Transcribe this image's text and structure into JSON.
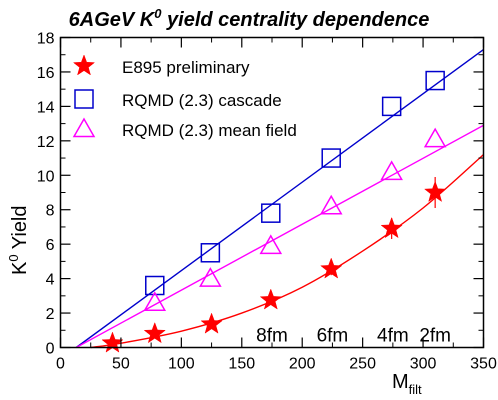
{
  "chart_data": {
    "type": "scatter",
    "title_main": "6AGeV K",
    "title_sup": "0",
    "title_rest": " yield centrality dependence",
    "xlabel_main": "M",
    "xlabel_sub": "filt",
    "ylabel_main": "K",
    "ylabel_sup": "0",
    "ylabel_rest": " Yield",
    "xlim": [
      0,
      350
    ],
    "ylim": [
      0,
      18
    ],
    "xticks": [
      0,
      50,
      100,
      150,
      200,
      250,
      300,
      350
    ],
    "yticks": [
      0,
      2,
      4,
      6,
      8,
      10,
      12,
      14,
      16,
      18
    ],
    "grid": false,
    "legend_position": "top-left",
    "series": [
      {
        "name": "E895 preliminary",
        "color": "#ff0000",
        "marker": "star",
        "x": [
          43,
          78,
          125,
          174,
          224,
          274,
          310
        ],
        "y": [
          0.25,
          0.8,
          1.35,
          2.75,
          4.55,
          6.9,
          9.0
        ],
        "yerr": [
          0.1,
          0.15,
          0.2,
          0.25,
          0.35,
          0.6,
          0.9
        ],
        "fit": {
          "type": "curve",
          "x": [
            25,
            50,
            100,
            150,
            200,
            250,
            300,
            350
          ],
          "y": [
            0.0,
            0.25,
            0.95,
            2.0,
            3.5,
            5.6,
            8.1,
            11.2
          ]
        }
      },
      {
        "name": "RQMD (2.3) cascade",
        "color": "#0000cc",
        "marker": "square",
        "x": [
          78,
          124,
          174,
          224,
          274,
          310
        ],
        "y": [
          3.6,
          5.5,
          7.8,
          11.0,
          14.0,
          15.5
        ],
        "fit": {
          "type": "line",
          "x": [
            13,
            350
          ],
          "y": [
            0.0,
            17.3
          ]
        }
      },
      {
        "name": "RQMD (2.3) mean field",
        "color": "#ff00ff",
        "marker": "triangle",
        "x": [
          78,
          124,
          174,
          224,
          274,
          310
        ],
        "y": [
          2.6,
          4.0,
          5.9,
          8.2,
          10.2,
          12.1
        ],
        "fit": {
          "type": "line",
          "x": [
            13,
            350
          ],
          "y": [
            0.0,
            12.9
          ]
        }
      }
    ],
    "annotations": [
      {
        "text": "8fm",
        "x": 175,
        "y": 0.35
      },
      {
        "text": "6fm",
        "x": 225,
        "y": 0.35
      },
      {
        "text": "4fm",
        "x": 275,
        "y": 0.35
      },
      {
        "text": "2fm",
        "x": 310,
        "y": 0.35
      }
    ]
  }
}
